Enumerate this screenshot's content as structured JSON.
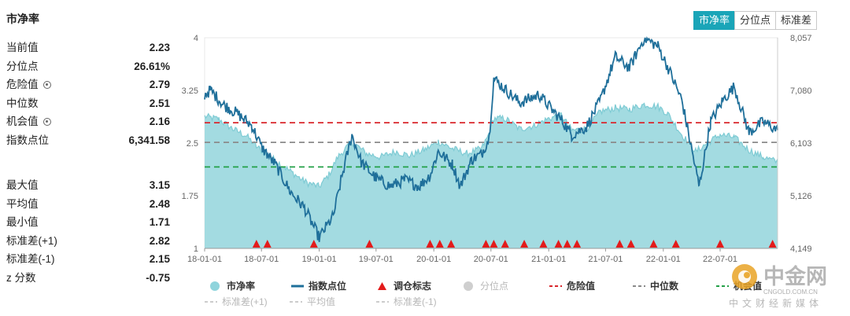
{
  "panel": {
    "title": "市净率",
    "stats_top": [
      {
        "label": "当前值",
        "value": "2.23",
        "gear": false
      },
      {
        "label": "分位点",
        "value": "26.61%",
        "gear": false
      },
      {
        "label": "危险值",
        "value": "2.79",
        "gear": true
      },
      {
        "label": "中位数",
        "value": "2.51",
        "gear": false
      },
      {
        "label": "机会值",
        "value": "2.16",
        "gear": true
      },
      {
        "label": "指数点位",
        "value": "6,341.58",
        "gear": false
      }
    ],
    "stats_bottom": [
      {
        "label": "最大值",
        "value": "3.15"
      },
      {
        "label": "平均值",
        "value": "2.48"
      },
      {
        "label": "最小值",
        "value": "1.71"
      },
      {
        "label": "标准差(+1)",
        "value": "2.82"
      },
      {
        "label": "标准差(-1)",
        "value": "2.15"
      },
      {
        "label": "z 分数",
        "value": "-0.75"
      }
    ]
  },
  "tabs": [
    {
      "label": "市净率",
      "active": true
    },
    {
      "label": "分位点",
      "active": false
    },
    {
      "label": "标准差",
      "active": false
    }
  ],
  "watermark": {
    "brand": "中金网",
    "domain": "CNGOLD.COM.CN",
    "tagline": "中文财经新媒体"
  },
  "chart_data": {
    "type": "area",
    "x_ticks": [
      "18-01-01",
      "18-07-01",
      "19-01-01",
      "19-07-01",
      "20-01-01",
      "20-07-01",
      "21-01-01",
      "21-07-01",
      "22-01-01",
      "22-07-01"
    ],
    "x_range": [
      "2018-01-01",
      "2022-12-31"
    ],
    "y_left": {
      "range": [
        1,
        4
      ],
      "ticks": [
        "1",
        "1.75",
        "2.5",
        "3.25",
        "4"
      ]
    },
    "y_right": {
      "range": [
        4149,
        8057
      ],
      "ticks": [
        "4,149",
        "5,126",
        "6,103",
        "7,080",
        "8,057"
      ]
    },
    "reference_lines": [
      {
        "name": "危险值",
        "value": 2.79,
        "color": "#d9262c"
      },
      {
        "name": "中位数",
        "value": 2.51,
        "color": "#8a8a8a"
      },
      {
        "name": "机会值",
        "value": 2.16,
        "color": "#23a047"
      }
    ],
    "series": [
      {
        "name": "市净率",
        "color": "#8fd4dc",
        "axis": "left",
        "points": [
          [
            "2018-01-01",
            2.88
          ],
          [
            "2018-02-15",
            2.84
          ],
          [
            "2018-04-01",
            2.7
          ],
          [
            "2018-05-15",
            2.6
          ],
          [
            "2018-06-15",
            2.45
          ],
          [
            "2018-07-15",
            2.35
          ],
          [
            "2018-08-15",
            2.25
          ],
          [
            "2018-10-01",
            2.1
          ],
          [
            "2018-11-15",
            1.95
          ],
          [
            "2019-01-01",
            1.88
          ],
          [
            "2019-02-01",
            2.05
          ],
          [
            "2019-03-01",
            2.3
          ],
          [
            "2019-04-15",
            2.52
          ],
          [
            "2019-06-01",
            2.35
          ],
          [
            "2019-07-15",
            2.3
          ],
          [
            "2019-09-01",
            2.38
          ],
          [
            "2019-10-15",
            2.32
          ],
          [
            "2019-12-01",
            2.4
          ],
          [
            "2020-01-15",
            2.52
          ],
          [
            "2020-03-01",
            2.42
          ],
          [
            "2020-04-15",
            2.35
          ],
          [
            "2020-06-01",
            2.42
          ],
          [
            "2020-06-20",
            2.58
          ],
          [
            "2020-07-10",
            2.85
          ],
          [
            "2020-08-15",
            2.85
          ],
          [
            "2020-10-01",
            2.7
          ],
          [
            "2020-11-15",
            2.75
          ],
          [
            "2021-01-01",
            2.85
          ],
          [
            "2021-02-10",
            2.9
          ],
          [
            "2021-03-15",
            2.68
          ],
          [
            "2021-05-01",
            2.7
          ],
          [
            "2021-06-15",
            2.95
          ],
          [
            "2021-08-01",
            3.0
          ],
          [
            "2021-09-15",
            2.98
          ],
          [
            "2021-11-01",
            3.05
          ],
          [
            "2021-12-15",
            3.02
          ],
          [
            "2022-01-15",
            2.92
          ],
          [
            "2022-03-01",
            2.62
          ],
          [
            "2022-04-15",
            2.38
          ],
          [
            "2022-05-15",
            2.48
          ],
          [
            "2022-07-01",
            2.62
          ],
          [
            "2022-08-15",
            2.58
          ],
          [
            "2022-10-01",
            2.4
          ],
          [
            "2022-11-15",
            2.3
          ],
          [
            "2022-12-31",
            2.23
          ]
        ]
      },
      {
        "name": "指数点位",
        "color": "#1f6f9a",
        "axis": "right",
        "points": [
          [
            "2018-01-01",
            7000
          ],
          [
            "2018-01-20",
            7080
          ],
          [
            "2018-03-01",
            6820
          ],
          [
            "2018-04-15",
            6650
          ],
          [
            "2018-06-01",
            6420
          ],
          [
            "2018-07-01",
            6030
          ],
          [
            "2018-08-15",
            5700
          ],
          [
            "2018-10-01",
            5200
          ],
          [
            "2018-11-15",
            4900
          ],
          [
            "2019-01-01",
            4350
          ],
          [
            "2019-02-15",
            4750
          ],
          [
            "2019-03-15",
            5500
          ],
          [
            "2019-04-15",
            6250
          ],
          [
            "2019-05-15",
            5750
          ],
          [
            "2019-07-01",
            5450
          ],
          [
            "2019-08-15",
            5300
          ],
          [
            "2019-10-01",
            5420
          ],
          [
            "2019-11-15",
            5300
          ],
          [
            "2019-12-20",
            5500
          ],
          [
            "2020-01-15",
            5950
          ],
          [
            "2020-03-01",
            5700
          ],
          [
            "2020-03-25",
            5300
          ],
          [
            "2020-05-01",
            5800
          ],
          [
            "2020-06-01",
            5900
          ],
          [
            "2020-06-25",
            6200
          ],
          [
            "2020-07-10",
            7300
          ],
          [
            "2020-08-15",
            7100
          ],
          [
            "2020-10-01",
            6850
          ],
          [
            "2020-12-01",
            7000
          ],
          [
            "2021-01-15",
            6700
          ],
          [
            "2021-02-15",
            6500
          ],
          [
            "2021-03-15",
            6250
          ],
          [
            "2021-05-01",
            6400
          ],
          [
            "2021-06-15",
            6900
          ],
          [
            "2021-08-01",
            7700
          ],
          [
            "2021-09-15",
            7500
          ],
          [
            "2021-11-01",
            8050
          ],
          [
            "2021-12-15",
            7900
          ],
          [
            "2022-01-20",
            7450
          ],
          [
            "2022-03-01",
            6900
          ],
          [
            "2022-04-25",
            5300
          ],
          [
            "2022-06-01",
            6500
          ],
          [
            "2022-07-10",
            6900
          ],
          [
            "2022-08-15",
            7150
          ],
          [
            "2022-10-01",
            6300
          ],
          [
            "2022-11-15",
            6500
          ],
          [
            "2022-12-31",
            6341.58
          ]
        ]
      }
    ],
    "markers": {
      "name": "调仓标志",
      "color": "#e31b1b",
      "dates": [
        "2018-06-15",
        "2018-07-20",
        "2018-12-15",
        "2019-06-10",
        "2019-12-20",
        "2020-01-20",
        "2020-02-25",
        "2020-06-15",
        "2020-07-10",
        "2020-08-15",
        "2020-10-15",
        "2020-12-15",
        "2021-02-01",
        "2021-03-01",
        "2021-04-01",
        "2021-08-15",
        "2021-09-20",
        "2021-12-01",
        "2022-02-10",
        "2022-07-01",
        "2022-12-15"
      ]
    },
    "legend": [
      {
        "label": "市净率",
        "kind": "dot",
        "color": "#8fd4dc"
      },
      {
        "label": "指数点位",
        "kind": "line",
        "color": "#1f6f9a"
      },
      {
        "label": "调仓标志",
        "kind": "triangle",
        "color": "#e31b1b"
      },
      {
        "label": "分位点",
        "kind": "dot",
        "color": "#cfcfcf",
        "muted": true
      },
      {
        "label": "危险值",
        "kind": "dash",
        "color": "#d9262c"
      },
      {
        "label": "中位数",
        "kind": "dash",
        "color": "#8a8a8a"
      },
      {
        "label": "机会值",
        "kind": "dash",
        "color": "#23a047"
      },
      {
        "label": "标准差(+1)",
        "kind": "dash",
        "color": "#cccccc",
        "muted": true
      },
      {
        "label": "平均值",
        "kind": "dash",
        "color": "#cccccc",
        "muted": true
      },
      {
        "label": "标准差(-1)",
        "kind": "dash",
        "color": "#cccccc",
        "muted": true
      }
    ]
  }
}
